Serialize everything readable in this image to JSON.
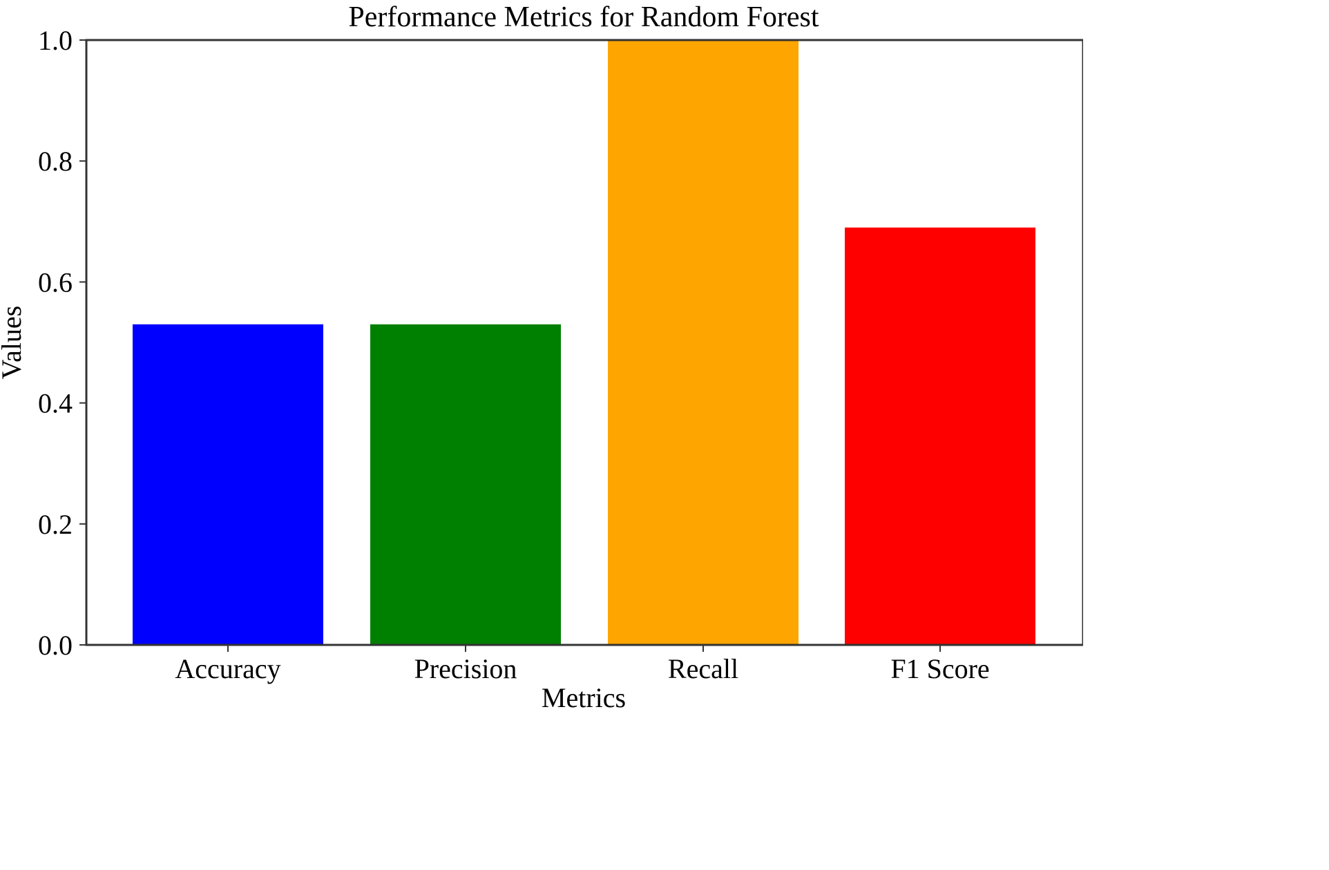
{
  "chart_data": {
    "type": "bar",
    "title": "Performance Metrics for Random Forest",
    "xlabel": "Metrics",
    "ylabel": "Values",
    "categories": [
      "Accuracy",
      "Precision",
      "Recall",
      "F1 Score"
    ],
    "values": [
      0.53,
      0.53,
      1.0,
      0.69
    ],
    "colors": [
      "#0000ff",
      "#008000",
      "#ffa500",
      "#ff0000"
    ],
    "ylim": [
      0,
      1.0
    ],
    "yticks": [
      "0.0",
      "0.2",
      "0.4",
      "0.6",
      "0.8",
      "1.0"
    ],
    "grid": false,
    "legend": false
  }
}
